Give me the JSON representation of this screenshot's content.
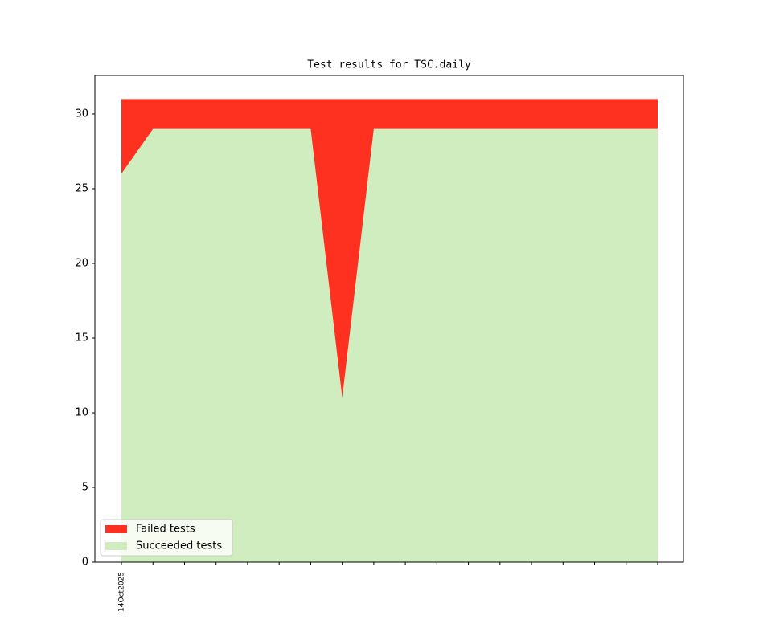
{
  "chart_data": {
    "type": "stacked-area",
    "title": "Test results for TSC.daily",
    "categories": [
      "14Oct2025",
      null,
      null,
      null,
      null,
      null,
      null,
      null,
      null,
      null,
      null,
      null,
      null,
      null,
      null,
      null,
      null,
      null
    ],
    "series": [
      {
        "name": "Failed tests",
        "color": "#fe3120",
        "values": [
          5,
          2,
          2,
          2,
          2,
          2,
          2,
          20,
          2,
          2,
          2,
          2,
          2,
          2,
          2,
          2,
          2,
          2
        ]
      },
      {
        "name": "Succeeded tests",
        "color": "#cfedbf",
        "values": [
          26,
          29,
          29,
          29,
          29,
          29,
          29,
          11,
          29,
          29,
          29,
          29,
          29,
          29,
          29,
          29,
          29,
          29
        ]
      }
    ],
    "ylim": [
      0,
      32.58
    ],
    "yticks": [
      0,
      5,
      10,
      15,
      20,
      25,
      30
    ],
    "legend": "lower left"
  }
}
